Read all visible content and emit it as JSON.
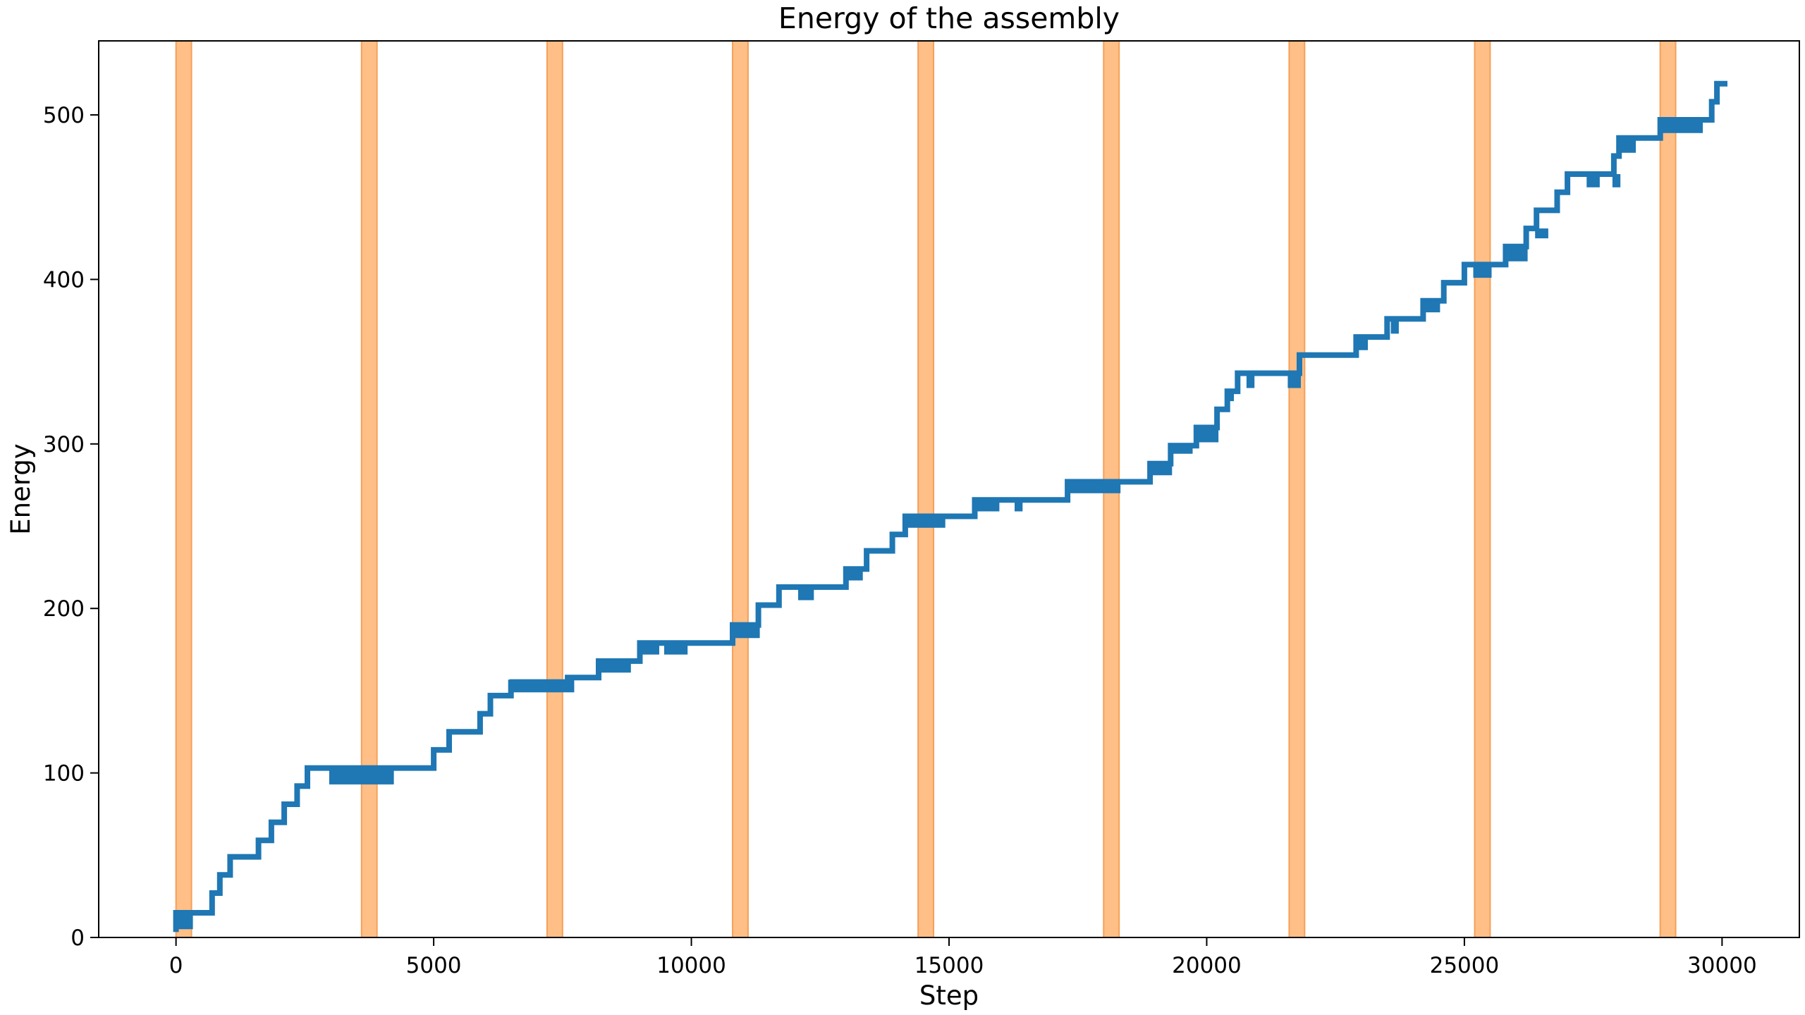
{
  "chart_data": {
    "type": "line",
    "title": "Energy of the assembly",
    "xlabel": "Step",
    "ylabel": "Energy",
    "xlim": [
      -1500,
      31500
    ],
    "ylim": [
      0,
      545
    ],
    "xticks": [
      0,
      5000,
      10000,
      15000,
      20000,
      25000,
      30000
    ],
    "yticks": [
      0,
      100,
      200,
      300,
      400,
      500
    ],
    "grid": false,
    "colors": {
      "line": "#1f77b4",
      "band": "#ffbf86",
      "band_edge": "#f5a05a"
    },
    "bands": [
      [
        0,
        300
      ],
      [
        3600,
        3900
      ],
      [
        7200,
        7500
      ],
      [
        10800,
        11100
      ],
      [
        14400,
        14700
      ],
      [
        18000,
        18300
      ],
      [
        21600,
        21900
      ],
      [
        25200,
        25500
      ],
      [
        28800,
        29100
      ]
    ],
    "series": [
      {
        "values": [
          [
            0,
            5
          ],
          [
            0,
            15
          ],
          [
            300,
            15
          ],
          [
            700,
            15
          ],
          [
            700,
            27
          ],
          [
            850,
            27
          ],
          [
            850,
            38
          ],
          [
            1050,
            38
          ],
          [
            1050,
            49
          ],
          [
            1600,
            49
          ],
          [
            1600,
            59
          ],
          [
            1850,
            59
          ],
          [
            1850,
            70
          ],
          [
            2100,
            70
          ],
          [
            2100,
            81
          ],
          [
            2350,
            81
          ],
          [
            2350,
            92
          ],
          [
            2550,
            92
          ],
          [
            2550,
            103
          ],
          [
            5000,
            103
          ],
          [
            5000,
            114
          ],
          [
            5300,
            114
          ],
          [
            5300,
            125
          ],
          [
            5900,
            125
          ],
          [
            5900,
            136
          ],
          [
            6100,
            136
          ],
          [
            6100,
            147
          ],
          [
            6500,
            147
          ],
          [
            6500,
            155
          ],
          [
            7600,
            155
          ],
          [
            7600,
            158
          ],
          [
            8200,
            158
          ],
          [
            8200,
            168
          ],
          [
            9000,
            168
          ],
          [
            9000,
            179
          ],
          [
            10800,
            179
          ],
          [
            10800,
            190
          ],
          [
            11300,
            190
          ],
          [
            11300,
            202
          ],
          [
            11700,
            202
          ],
          [
            11700,
            213
          ],
          [
            13000,
            213
          ],
          [
            13000,
            224
          ],
          [
            13400,
            224
          ],
          [
            13400,
            235
          ],
          [
            13900,
            235
          ],
          [
            13900,
            245
          ],
          [
            14150,
            245
          ],
          [
            14150,
            256
          ],
          [
            15500,
            256
          ],
          [
            15500,
            266
          ],
          [
            17300,
            266
          ],
          [
            17300,
            277
          ],
          [
            18900,
            277
          ],
          [
            18900,
            288
          ],
          [
            19300,
            288
          ],
          [
            19300,
            299
          ],
          [
            19800,
            299
          ],
          [
            19800,
            310
          ],
          [
            20200,
            310
          ],
          [
            20200,
            321
          ],
          [
            20400,
            321
          ],
          [
            20400,
            332
          ],
          [
            20600,
            332
          ],
          [
            20600,
            343
          ],
          [
            21800,
            343
          ],
          [
            21800,
            354
          ],
          [
            22900,
            354
          ],
          [
            22900,
            365
          ],
          [
            23500,
            365
          ],
          [
            23500,
            376
          ],
          [
            24200,
            376
          ],
          [
            24200,
            387
          ],
          [
            24600,
            387
          ],
          [
            24600,
            398
          ],
          [
            25000,
            398
          ],
          [
            25000,
            409
          ],
          [
            25800,
            409
          ],
          [
            25800,
            420
          ],
          [
            26200,
            420
          ],
          [
            26200,
            431
          ],
          [
            26400,
            431
          ],
          [
            26400,
            442
          ],
          [
            26800,
            442
          ],
          [
            26800,
            453
          ],
          [
            27000,
            453
          ],
          [
            27000,
            464
          ],
          [
            27900,
            464
          ],
          [
            27900,
            475
          ],
          [
            28000,
            475
          ],
          [
            28000,
            486
          ],
          [
            28800,
            486
          ],
          [
            28800,
            497
          ],
          [
            29800,
            497
          ],
          [
            29800,
            508
          ],
          [
            29900,
            508
          ],
          [
            29900,
            519
          ],
          [
            30050,
            519
          ]
        ],
        "noise": [
          [
            0,
            300,
            5,
            15
          ],
          [
            3000,
            3550,
            93,
            103
          ],
          [
            3600,
            4200,
            93,
            103
          ],
          [
            6500,
            7700,
            149,
            157
          ],
          [
            8200,
            8800,
            161,
            168
          ],
          [
            9000,
            9350,
            172,
            179
          ],
          [
            9500,
            9900,
            172,
            179
          ],
          [
            10800,
            11300,
            182,
            190
          ],
          [
            12100,
            12350,
            205,
            213
          ],
          [
            13000,
            13300,
            217,
            224
          ],
          [
            14150,
            14900,
            249,
            256
          ],
          [
            15500,
            15950,
            259,
            266
          ],
          [
            16300,
            16400,
            259,
            266
          ],
          [
            17300,
            18300,
            270,
            277
          ],
          [
            18900,
            19300,
            281,
            288
          ],
          [
            19300,
            19700,
            294,
            299
          ],
          [
            19800,
            20200,
            301,
            310
          ],
          [
            20400,
            20500,
            326,
            332
          ],
          [
            20800,
            20900,
            334,
            343
          ],
          [
            21600,
            21800,
            334,
            343
          ],
          [
            22900,
            23100,
            357,
            365
          ],
          [
            23600,
            23700,
            367,
            376
          ],
          [
            24200,
            24500,
            380,
            387
          ],
          [
            25200,
            25500,
            401,
            409
          ],
          [
            25800,
            26200,
            411,
            420
          ],
          [
            26400,
            26600,
            425,
            431
          ],
          [
            27400,
            27600,
            456,
            464
          ],
          [
            27900,
            28000,
            456,
            464
          ],
          [
            28000,
            28300,
            477,
            486
          ],
          [
            28800,
            29600,
            489,
            497
          ]
        ]
      }
    ]
  }
}
